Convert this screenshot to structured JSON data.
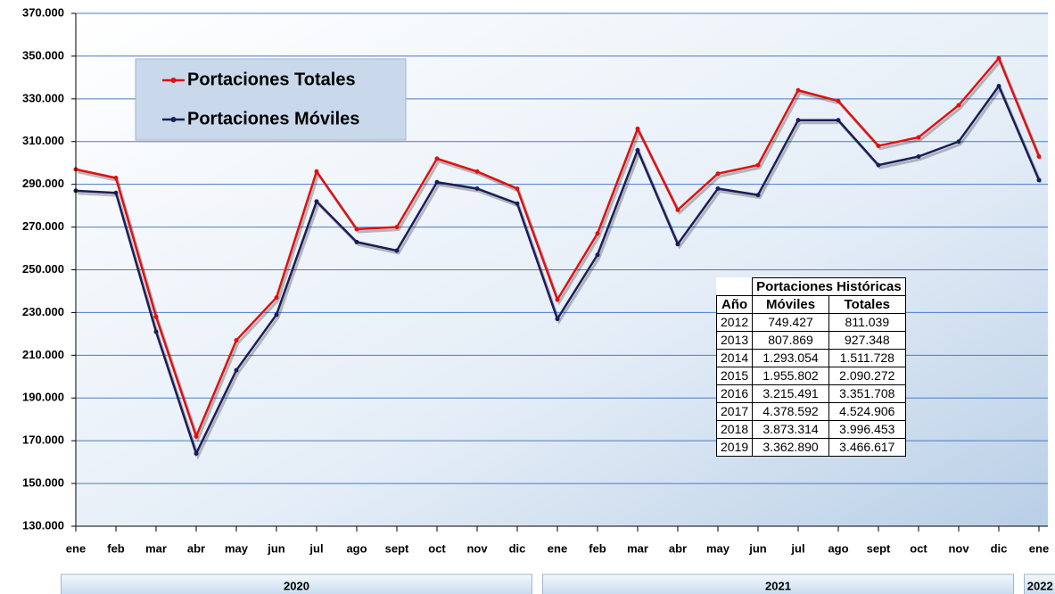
{
  "chart_data": {
    "type": "line",
    "categories": [
      "ene",
      "feb",
      "mar",
      "abr",
      "may",
      "jun",
      "jul",
      "ago",
      "sept",
      "oct",
      "nov",
      "dic",
      "ene",
      "feb",
      "mar",
      "abr",
      "may",
      "jun",
      "jul",
      "ago",
      "sept",
      "oct",
      "nov",
      "dic",
      "ene"
    ],
    "groups": [
      "2020",
      "2021",
      "2022"
    ],
    "series": [
      {
        "name": "Portaciones Totales",
        "color": "#e01010",
        "values": [
          297000,
          293000,
          228000,
          172000,
          217000,
          237000,
          296000,
          269000,
          270000,
          302000,
          296000,
          288000,
          236000,
          267000,
          316000,
          278000,
          295000,
          299000,
          334000,
          329000,
          308000,
          312000,
          327000,
          349000,
          303000
        ]
      },
      {
        "name": "Portaciones Móviles",
        "color": "#1c1c5a",
        "values": [
          287000,
          286000,
          221000,
          164000,
          203000,
          229000,
          282000,
          263000,
          259000,
          291000,
          288000,
          281000,
          227000,
          257000,
          306000,
          262000,
          288000,
          285000,
          320000,
          320000,
          299000,
          303000,
          310000,
          336000,
          292000
        ]
      }
    ],
    "ylim": [
      130000,
      370000
    ],
    "yticks": [
      {
        "value": 130000,
        "label": "130.000"
      },
      {
        "value": 150000,
        "label": "150.000"
      },
      {
        "value": 170000,
        "label": "170.000"
      },
      {
        "value": 190000,
        "label": "190.000"
      },
      {
        "value": 210000,
        "label": "210.000"
      },
      {
        "value": 230000,
        "label": "230.000"
      },
      {
        "value": 250000,
        "label": "250.000"
      },
      {
        "value": 270000,
        "label": "270.000"
      },
      {
        "value": 290000,
        "label": "290.000"
      },
      {
        "value": 310000,
        "label": "310.000"
      },
      {
        "value": 330000,
        "label": "330.000"
      },
      {
        "value": 350000,
        "label": "350.000"
      },
      {
        "value": 370000,
        "label": "370.000"
      }
    ],
    "grid": true,
    "legend": "upper left"
  },
  "table": {
    "title": "Portaciones Históricas",
    "header": [
      "Año",
      "Móviles",
      "Totales"
    ],
    "rows": [
      [
        "2012",
        "749.427",
        "811.039"
      ],
      [
        "2013",
        "807.869",
        "927.348"
      ],
      [
        "2014",
        "1.293.054",
        "1.511.728"
      ],
      [
        "2015",
        "1.955.802",
        "2.090.272"
      ],
      [
        "2016",
        "3.215.491",
        "3.351.708"
      ],
      [
        "2017",
        "4.378.592",
        "4.524.906"
      ],
      [
        "2018",
        "3.873.314",
        "3.996.453"
      ],
      [
        "2019",
        "3.362.890",
        "3.466.617"
      ]
    ]
  }
}
